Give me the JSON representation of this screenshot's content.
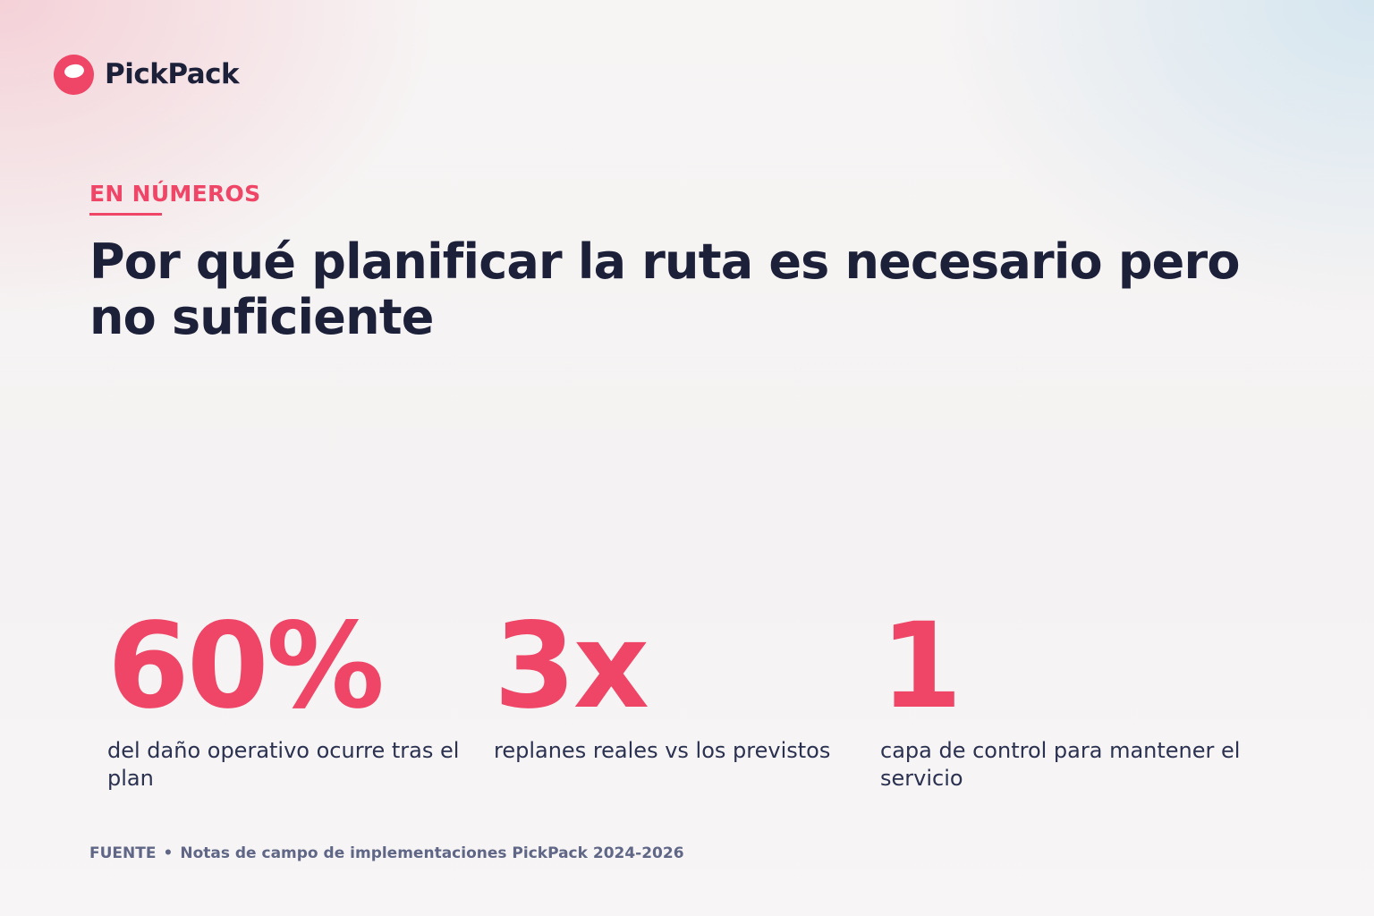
{
  "brand": {
    "name": "PickPack",
    "logo_icon": "pickpack-logo-icon",
    "accent_color": "#ef4566",
    "text_color": "#1c2038"
  },
  "eyebrow": "EN NÚMEROS",
  "headline": "Por qué planificar la ruta es necesario pero no suficiente",
  "stats": [
    {
      "value": "60%",
      "label": "del daño operativo ocurre tras el plan"
    },
    {
      "value": "3x",
      "label": "replanes reales vs los previstos"
    },
    {
      "value": "1",
      "label": "capa de control para mantener el servicio"
    }
  ],
  "source": {
    "label": "FUENTE",
    "separator": "•",
    "text": "Notas de campo de implementaciones PickPack 2024-2026"
  }
}
